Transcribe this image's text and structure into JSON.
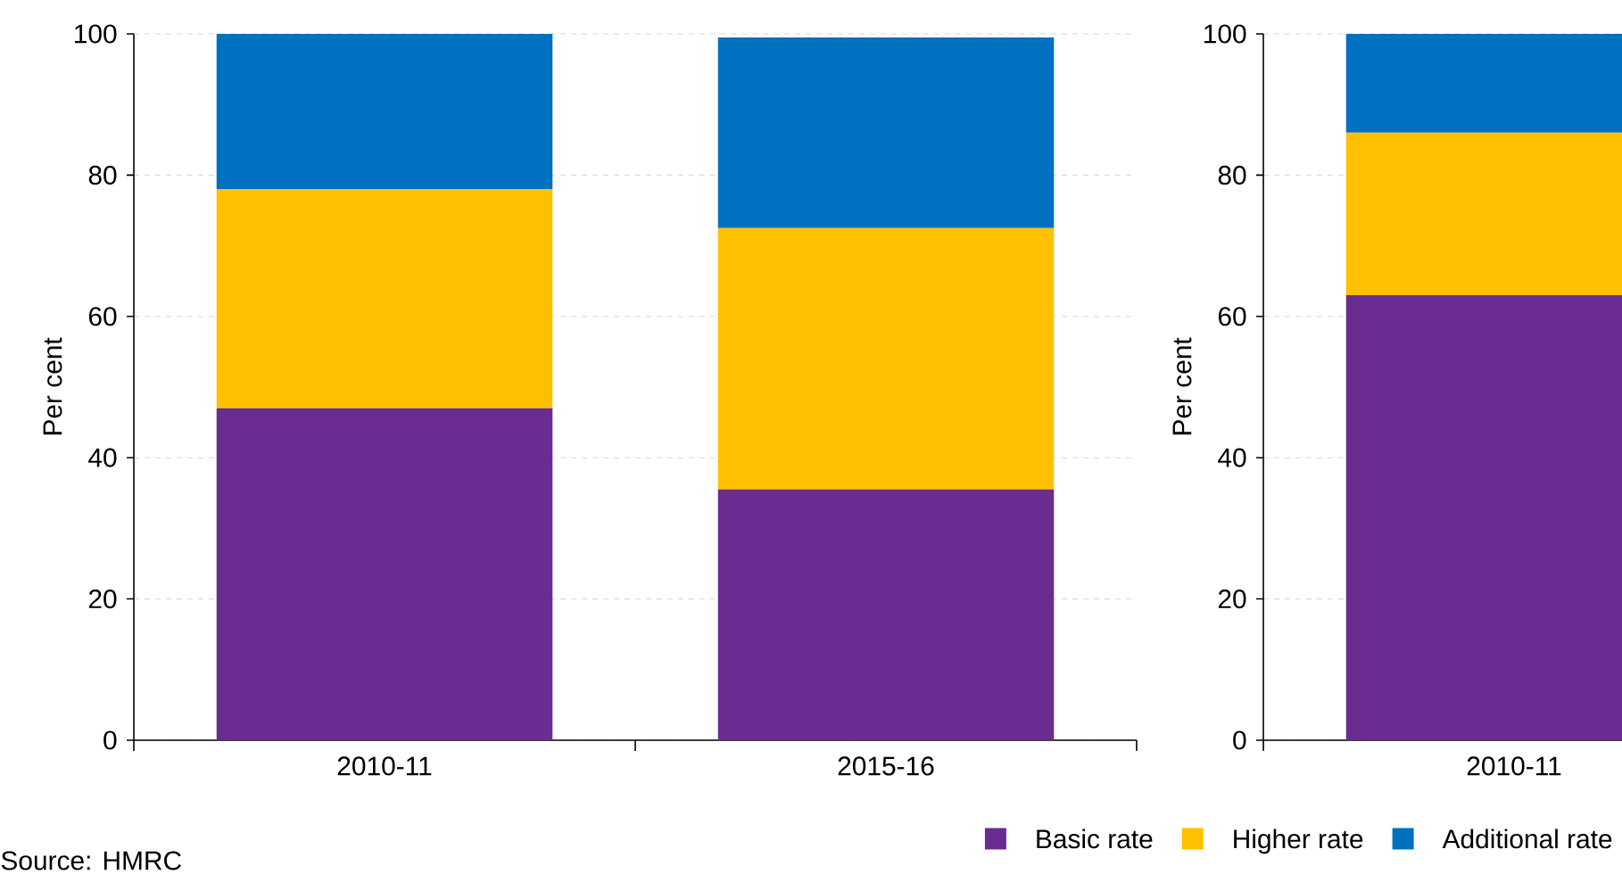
{
  "chart_data": [
    {
      "type": "bar",
      "stacked": true,
      "categories": [
        "2010-11",
        "2015-16"
      ],
      "ylabel": "Per cent",
      "ylim": [
        0,
        100
      ],
      "yticks": [
        0,
        20,
        40,
        60,
        80,
        100
      ],
      "grid": "y",
      "legend": "bottom",
      "series": [
        {
          "name": "Basic rate",
          "color": "#6a2c91",
          "values": [
            47,
            35.5
          ]
        },
        {
          "name": "Higher rate",
          "color": "#ffc000",
          "values": [
            31,
            37
          ]
        },
        {
          "name": "Additional rate",
          "color": "#0070c0",
          "values": [
            22,
            27
          ]
        }
      ],
      "annotations": [
        "Source: HMRC"
      ]
    },
    {
      "type": "bar",
      "stacked": true,
      "categories": [
        "2010-11"
      ],
      "ylabel": "Per cent",
      "ylim": [
        0,
        100
      ],
      "yticks": [
        0,
        20,
        40,
        60,
        80,
        100
      ],
      "grid": "y",
      "series": [
        {
          "color": "#6a2c91",
          "values": [
            63
          ]
        },
        {
          "color": "#ffc000",
          "values": [
            23
          ]
        },
        {
          "color": "#0070c0",
          "values": [
            14
          ]
        }
      ]
    }
  ]
}
